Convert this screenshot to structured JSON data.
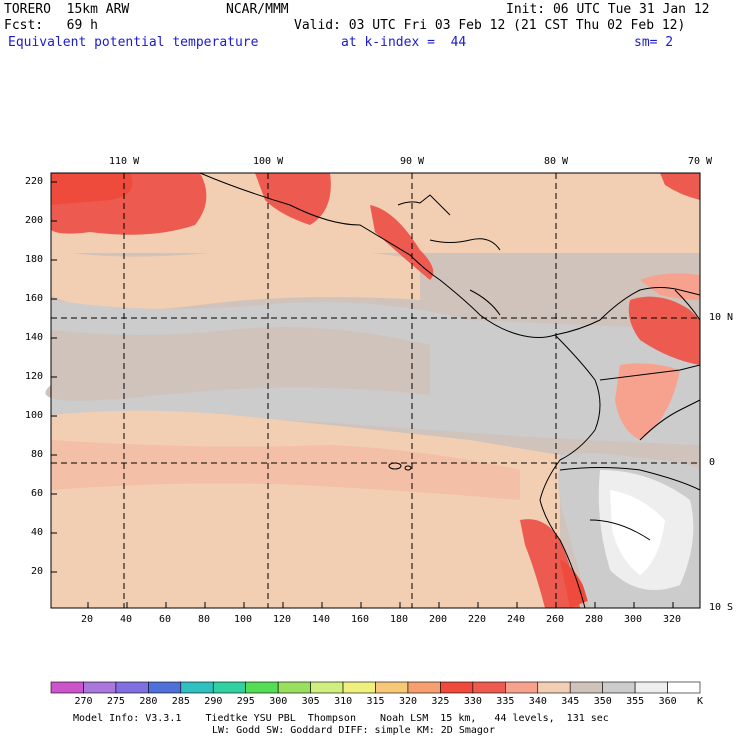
{
  "header": {
    "model": "TORERO  15km ARW",
    "org": "NCAR/MMM",
    "init": "Init: 06 UTC Tue 31 Jan 12",
    "fcst": "Fcst:   69 h",
    "valid": "Valid: 03 UTC Fri 03 Feb 12 (21 CST Thu 02 Feb 12)",
    "field": "Equivalent potential temperature",
    "level": "at k-index =  44",
    "smooth": "sm= 2"
  },
  "map": {
    "top_labels": [
      "110 W",
      "100 W",
      "90 W",
      "80 W",
      "70 W"
    ],
    "right_labels": [
      "10 N",
      "0",
      "10 S"
    ],
    "left_ticks": [
      "20",
      "40",
      "60",
      "80",
      "100",
      "120",
      "140",
      "160",
      "180",
      "200",
      "220"
    ],
    "bottom_ticks": [
      "20",
      "40",
      "60",
      "80",
      "100",
      "120",
      "140",
      "160",
      "180",
      "200",
      "220",
      "240",
      "260",
      "280",
      "300",
      "320"
    ]
  },
  "colorbar": {
    "unit": "K",
    "labels": [
      "270",
      "275",
      "280",
      "285",
      "290",
      "295",
      "300",
      "305",
      "310",
      "315",
      "320",
      "325",
      "330",
      "335",
      "340",
      "345",
      "350",
      "355",
      "360"
    ],
    "colors": [
      "#cc55cc",
      "#aa77dd",
      "#7f6fe0",
      "#4f6fd9",
      "#30c0c0",
      "#30d0a0",
      "#55dd55",
      "#99e060",
      "#cff080",
      "#f0f080",
      "#f7c87a",
      "#f6a070",
      "#ee4b3c",
      "#ec5a50",
      "#f6a28e",
      "#f2ceb2",
      "#cfc3bb",
      "#cccccc",
      "#eeeeee",
      "#ffffff"
    ]
  },
  "footer": {
    "line1": "Model Info: V3.3.1    Tiedtke YSU PBL  Thompson    Noah LSM  15 km,   44 levels,  131 sec",
    "line2": "LW: Godd SW: Goddard DIFF: simple KM: 2D Smagor"
  }
}
